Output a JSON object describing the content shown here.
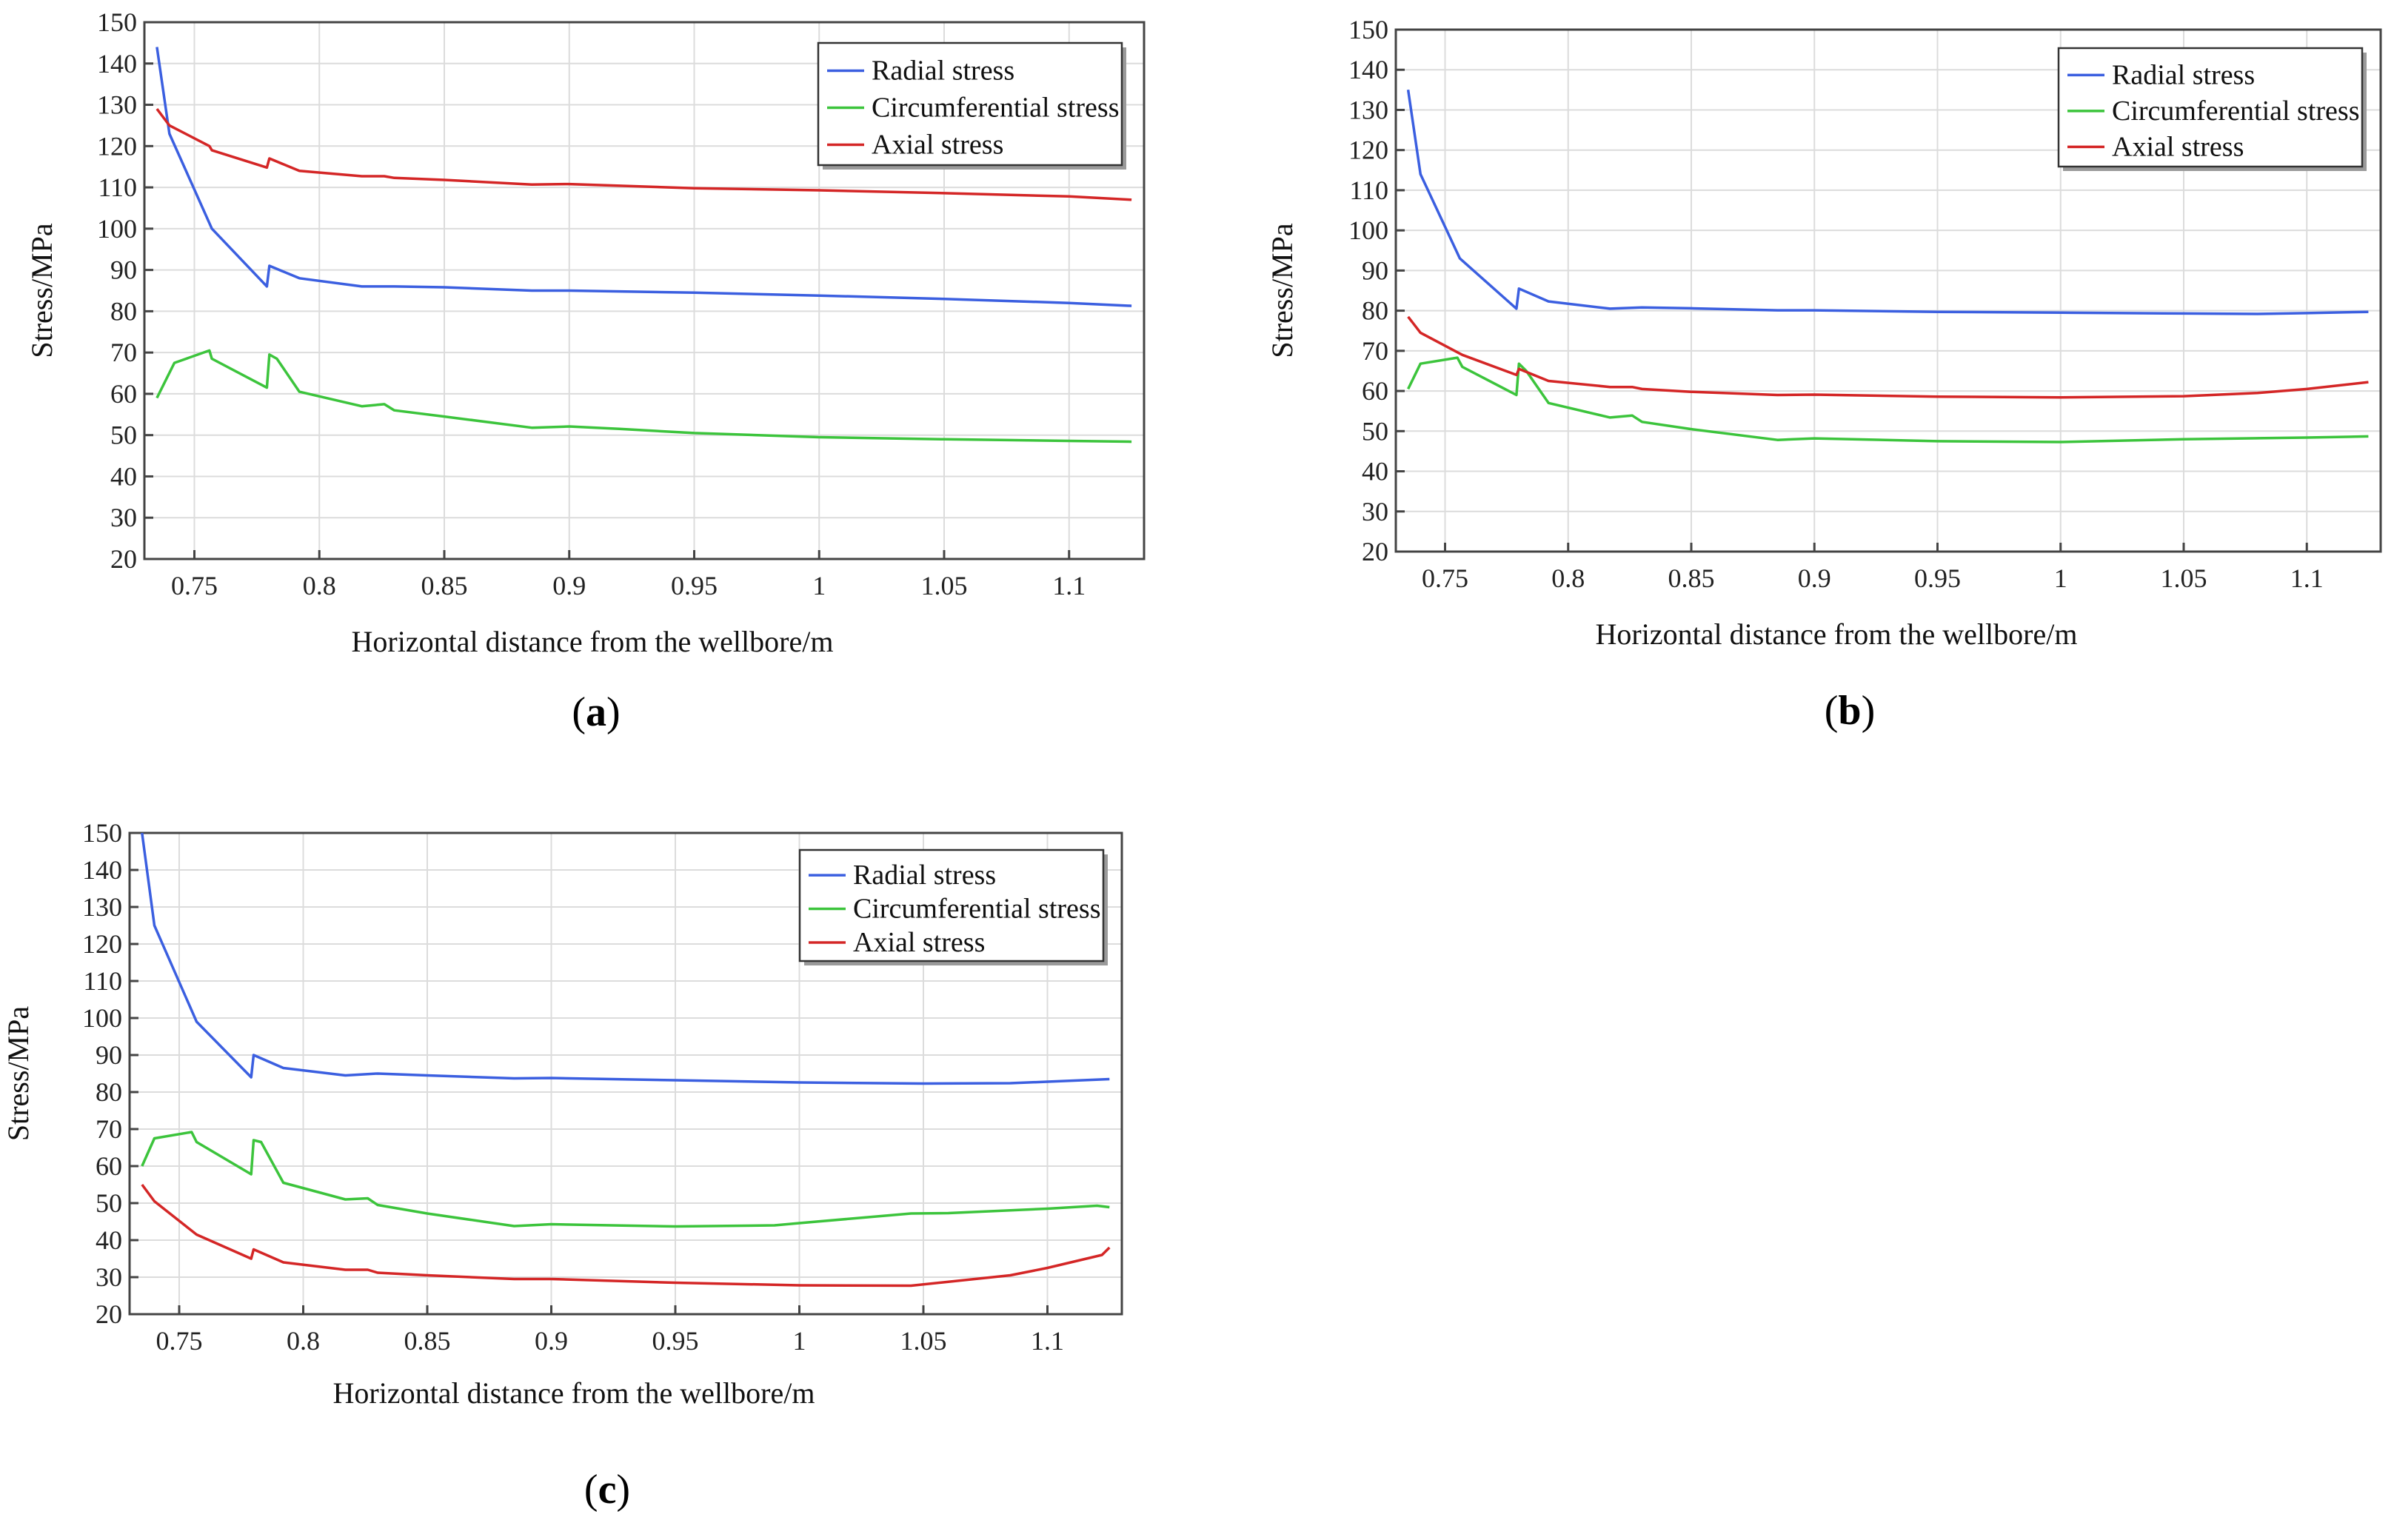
{
  "chart_data": [
    {
      "panel": "a",
      "type": "line",
      "xlabel": "Horizontal distance from the wellbore/m",
      "ylabel": "Stress/MPa",
      "xlim": [
        0.73,
        1.13
      ],
      "ylim": [
        20,
        150
      ],
      "xticks": [
        0.75,
        0.8,
        0.85,
        0.9,
        0.95,
        1,
        1.05,
        1.1
      ],
      "xtick_labels": [
        "0.75",
        "0.8",
        "0.85",
        "0.9",
        "0.95",
        "1",
        "1.05",
        "1.1"
      ],
      "yticks": [
        20,
        30,
        40,
        50,
        60,
        70,
        80,
        90,
        100,
        110,
        120,
        130,
        140,
        150
      ],
      "legend": "top-right",
      "grid": true,
      "series": [
        {
          "name": "Radial stress",
          "color": "#3b5fe0",
          "points": [
            [
              0.735,
              144
            ],
            [
              0.74,
              123
            ],
            [
              0.757,
              100
            ],
            [
              0.779,
              86
            ],
            [
              0.78,
              91
            ],
            [
              0.792,
              88
            ],
            [
              0.817,
              86
            ],
            [
              0.83,
              86
            ],
            [
              0.85,
              85.8
            ],
            [
              0.885,
              85
            ],
            [
              0.9,
              85
            ],
            [
              0.95,
              84.5
            ],
            [
              1,
              83.8
            ],
            [
              1.05,
              83
            ],
            [
              1.1,
              82
            ],
            [
              1.125,
              81.3
            ]
          ]
        },
        {
          "name": "Circumferential stress",
          "color": "#3cc43c",
          "points": [
            [
              0.735,
              59
            ],
            [
              0.742,
              67.5
            ],
            [
              0.756,
              70.5
            ],
            [
              0.757,
              68.5
            ],
            [
              0.779,
              61.5
            ],
            [
              0.78,
              69.5
            ],
            [
              0.783,
              68.5
            ],
            [
              0.792,
              60.5
            ],
            [
              0.817,
              57
            ],
            [
              0.826,
              57.5
            ],
            [
              0.83,
              56
            ],
            [
              0.85,
              54.5
            ],
            [
              0.885,
              51.8
            ],
            [
              0.9,
              52.1
            ],
            [
              0.92,
              51.5
            ],
            [
              0.95,
              50.5
            ],
            [
              1,
              49.5
            ],
            [
              1.05,
              49
            ],
            [
              1.1,
              48.6
            ],
            [
              1.125,
              48.4
            ]
          ]
        },
        {
          "name": "Axial stress",
          "color": "#d42626",
          "points": [
            [
              0.735,
              129
            ],
            [
              0.74,
              125
            ],
            [
              0.756,
              120
            ],
            [
              0.757,
              119
            ],
            [
              0.779,
              114.8
            ],
            [
              0.78,
              117
            ],
            [
              0.792,
              114
            ],
            [
              0.817,
              112.7
            ],
            [
              0.826,
              112.7
            ],
            [
              0.83,
              112.3
            ],
            [
              0.85,
              111.8
            ],
            [
              0.885,
              110.7
            ],
            [
              0.9,
              110.8
            ],
            [
              0.95,
              109.8
            ],
            [
              1,
              109.3
            ],
            [
              1.05,
              108.6
            ],
            [
              1.1,
              107.8
            ],
            [
              1.125,
              107
            ]
          ]
        }
      ]
    },
    {
      "panel": "b",
      "type": "line",
      "xlabel": "Horizontal distance from the wellbore/m",
      "ylabel": "Stress/MPa",
      "xlim": [
        0.73,
        1.13
      ],
      "ylim": [
        20,
        150
      ],
      "xticks": [
        0.75,
        0.8,
        0.85,
        0.9,
        0.95,
        1,
        1.05,
        1.1
      ],
      "xtick_labels": [
        "0.75",
        "0.8",
        "0.85",
        "0.9",
        "0.95",
        "1",
        "1.05",
        "1.1"
      ],
      "yticks": [
        20,
        30,
        40,
        50,
        60,
        70,
        80,
        90,
        100,
        110,
        120,
        130,
        140,
        150
      ],
      "legend": "top-right",
      "grid": true,
      "series": [
        {
          "name": "Radial stress",
          "color": "#3b5fe0",
          "points": [
            [
              0.735,
              135
            ],
            [
              0.74,
              114
            ],
            [
              0.756,
              93
            ],
            [
              0.779,
              80.5
            ],
            [
              0.78,
              85.5
            ],
            [
              0.792,
              82.3
            ],
            [
              0.817,
              80.5
            ],
            [
              0.83,
              80.8
            ],
            [
              0.85,
              80.6
            ],
            [
              0.885,
              80.1
            ],
            [
              0.9,
              80.1
            ],
            [
              0.95,
              79.7
            ],
            [
              1,
              79.5
            ],
            [
              1.05,
              79.3
            ],
            [
              1.08,
              79.2
            ],
            [
              1.1,
              79.4
            ],
            [
              1.125,
              79.7
            ]
          ]
        },
        {
          "name": "Circumferential stress",
          "color": "#3cc43c",
          "points": [
            [
              0.735,
              60.5
            ],
            [
              0.74,
              66.8
            ],
            [
              0.755,
              68.3
            ],
            [
              0.757,
              66
            ],
            [
              0.779,
              59
            ],
            [
              0.78,
              66.8
            ],
            [
              0.783,
              65
            ],
            [
              0.792,
              57
            ],
            [
              0.817,
              53.4
            ],
            [
              0.826,
              53.9
            ],
            [
              0.83,
              52.3
            ],
            [
              0.85,
              50.5
            ],
            [
              0.885,
              47.8
            ],
            [
              0.9,
              48.2
            ],
            [
              0.95,
              47.5
            ],
            [
              1,
              47.3
            ],
            [
              1.05,
              48
            ],
            [
              1.1,
              48.4
            ],
            [
              1.125,
              48.7
            ]
          ]
        },
        {
          "name": "Axial stress",
          "color": "#d42626",
          "points": [
            [
              0.735,
              78.5
            ],
            [
              0.74,
              74.5
            ],
            [
              0.757,
              69
            ],
            [
              0.779,
              64
            ],
            [
              0.78,
              65.5
            ],
            [
              0.792,
              62.5
            ],
            [
              0.817,
              61
            ],
            [
              0.826,
              61
            ],
            [
              0.83,
              60.5
            ],
            [
              0.85,
              59.8
            ],
            [
              0.885,
              59
            ],
            [
              0.9,
              59.1
            ],
            [
              0.95,
              58.6
            ],
            [
              1,
              58.4
            ],
            [
              1.05,
              58.7
            ],
            [
              1.08,
              59.5
            ],
            [
              1.1,
              60.5
            ],
            [
              1.125,
              62.2
            ]
          ]
        }
      ]
    },
    {
      "panel": "c",
      "type": "line",
      "xlabel": "Horizontal distance from the wellbore/m",
      "ylabel": "Stress/MPa",
      "xlim": [
        0.73,
        1.13
      ],
      "ylim": [
        20,
        150
      ],
      "xticks": [
        0.75,
        0.8,
        0.85,
        0.9,
        0.95,
        1,
        1.05,
        1.1
      ],
      "xtick_labels": [
        "0.75",
        "0.8",
        "0.85",
        "0.9",
        "0.95",
        "1",
        "1.05",
        "1.1"
      ],
      "yticks": [
        20,
        30,
        40,
        50,
        60,
        70,
        80,
        90,
        100,
        110,
        120,
        130,
        140,
        150
      ],
      "legend": "top-right",
      "grid": true,
      "series": [
        {
          "name": "Radial stress",
          "color": "#3b5fe0",
          "points": [
            [
              0.735,
              150
            ],
            [
              0.74,
              125
            ],
            [
              0.757,
              99
            ],
            [
              0.779,
              84
            ],
            [
              0.78,
              90
            ],
            [
              0.792,
              86.5
            ],
            [
              0.817,
              84.5
            ],
            [
              0.83,
              85
            ],
            [
              0.85,
              84.5
            ],
            [
              0.885,
              83.7
            ],
            [
              0.9,
              83.8
            ],
            [
              0.95,
              83.2
            ],
            [
              1,
              82.6
            ],
            [
              1.05,
              82.3
            ],
            [
              1.085,
              82.4
            ],
            [
              1.1,
              82.8
            ],
            [
              1.125,
              83.5
            ]
          ]
        },
        {
          "name": "Circumferential stress",
          "color": "#3cc43c",
          "points": [
            [
              0.735,
              60
            ],
            [
              0.74,
              67.5
            ],
            [
              0.755,
              69.2
            ],
            [
              0.757,
              66.5
            ],
            [
              0.779,
              57.8
            ],
            [
              0.78,
              67
            ],
            [
              0.783,
              66.5
            ],
            [
              0.792,
              55.5
            ],
            [
              0.817,
              51
            ],
            [
              0.826,
              51.3
            ],
            [
              0.83,
              49.5
            ],
            [
              0.85,
              47.2
            ],
            [
              0.885,
              43.8
            ],
            [
              0.9,
              44.3
            ],
            [
              0.95,
              43.7
            ],
            [
              0.99,
              44
            ],
            [
              1,
              44.6
            ],
            [
              1.045,
              47.2
            ],
            [
              1.06,
              47.3
            ],
            [
              1.1,
              48.5
            ],
            [
              1.12,
              49.3
            ],
            [
              1.125,
              48.9
            ]
          ]
        },
        {
          "name": "Axial stress",
          "color": "#d42626",
          "points": [
            [
              0.735,
              55
            ],
            [
              0.74,
              50.5
            ],
            [
              0.757,
              41.5
            ],
            [
              0.779,
              35
            ],
            [
              0.78,
              37.5
            ],
            [
              0.792,
              34
            ],
            [
              0.817,
              32
            ],
            [
              0.826,
              32
            ],
            [
              0.83,
              31.2
            ],
            [
              0.85,
              30.5
            ],
            [
              0.885,
              29.5
            ],
            [
              0.9,
              29.5
            ],
            [
              0.95,
              28.5
            ],
            [
              1,
              27.8
            ],
            [
              1.045,
              27.7
            ],
            [
              1.085,
              30.5
            ],
            [
              1.1,
              32.5
            ],
            [
              1.122,
              36
            ],
            [
              1.125,
              38
            ]
          ]
        }
      ]
    }
  ],
  "panel_labels": [
    "a",
    "b",
    "c"
  ]
}
